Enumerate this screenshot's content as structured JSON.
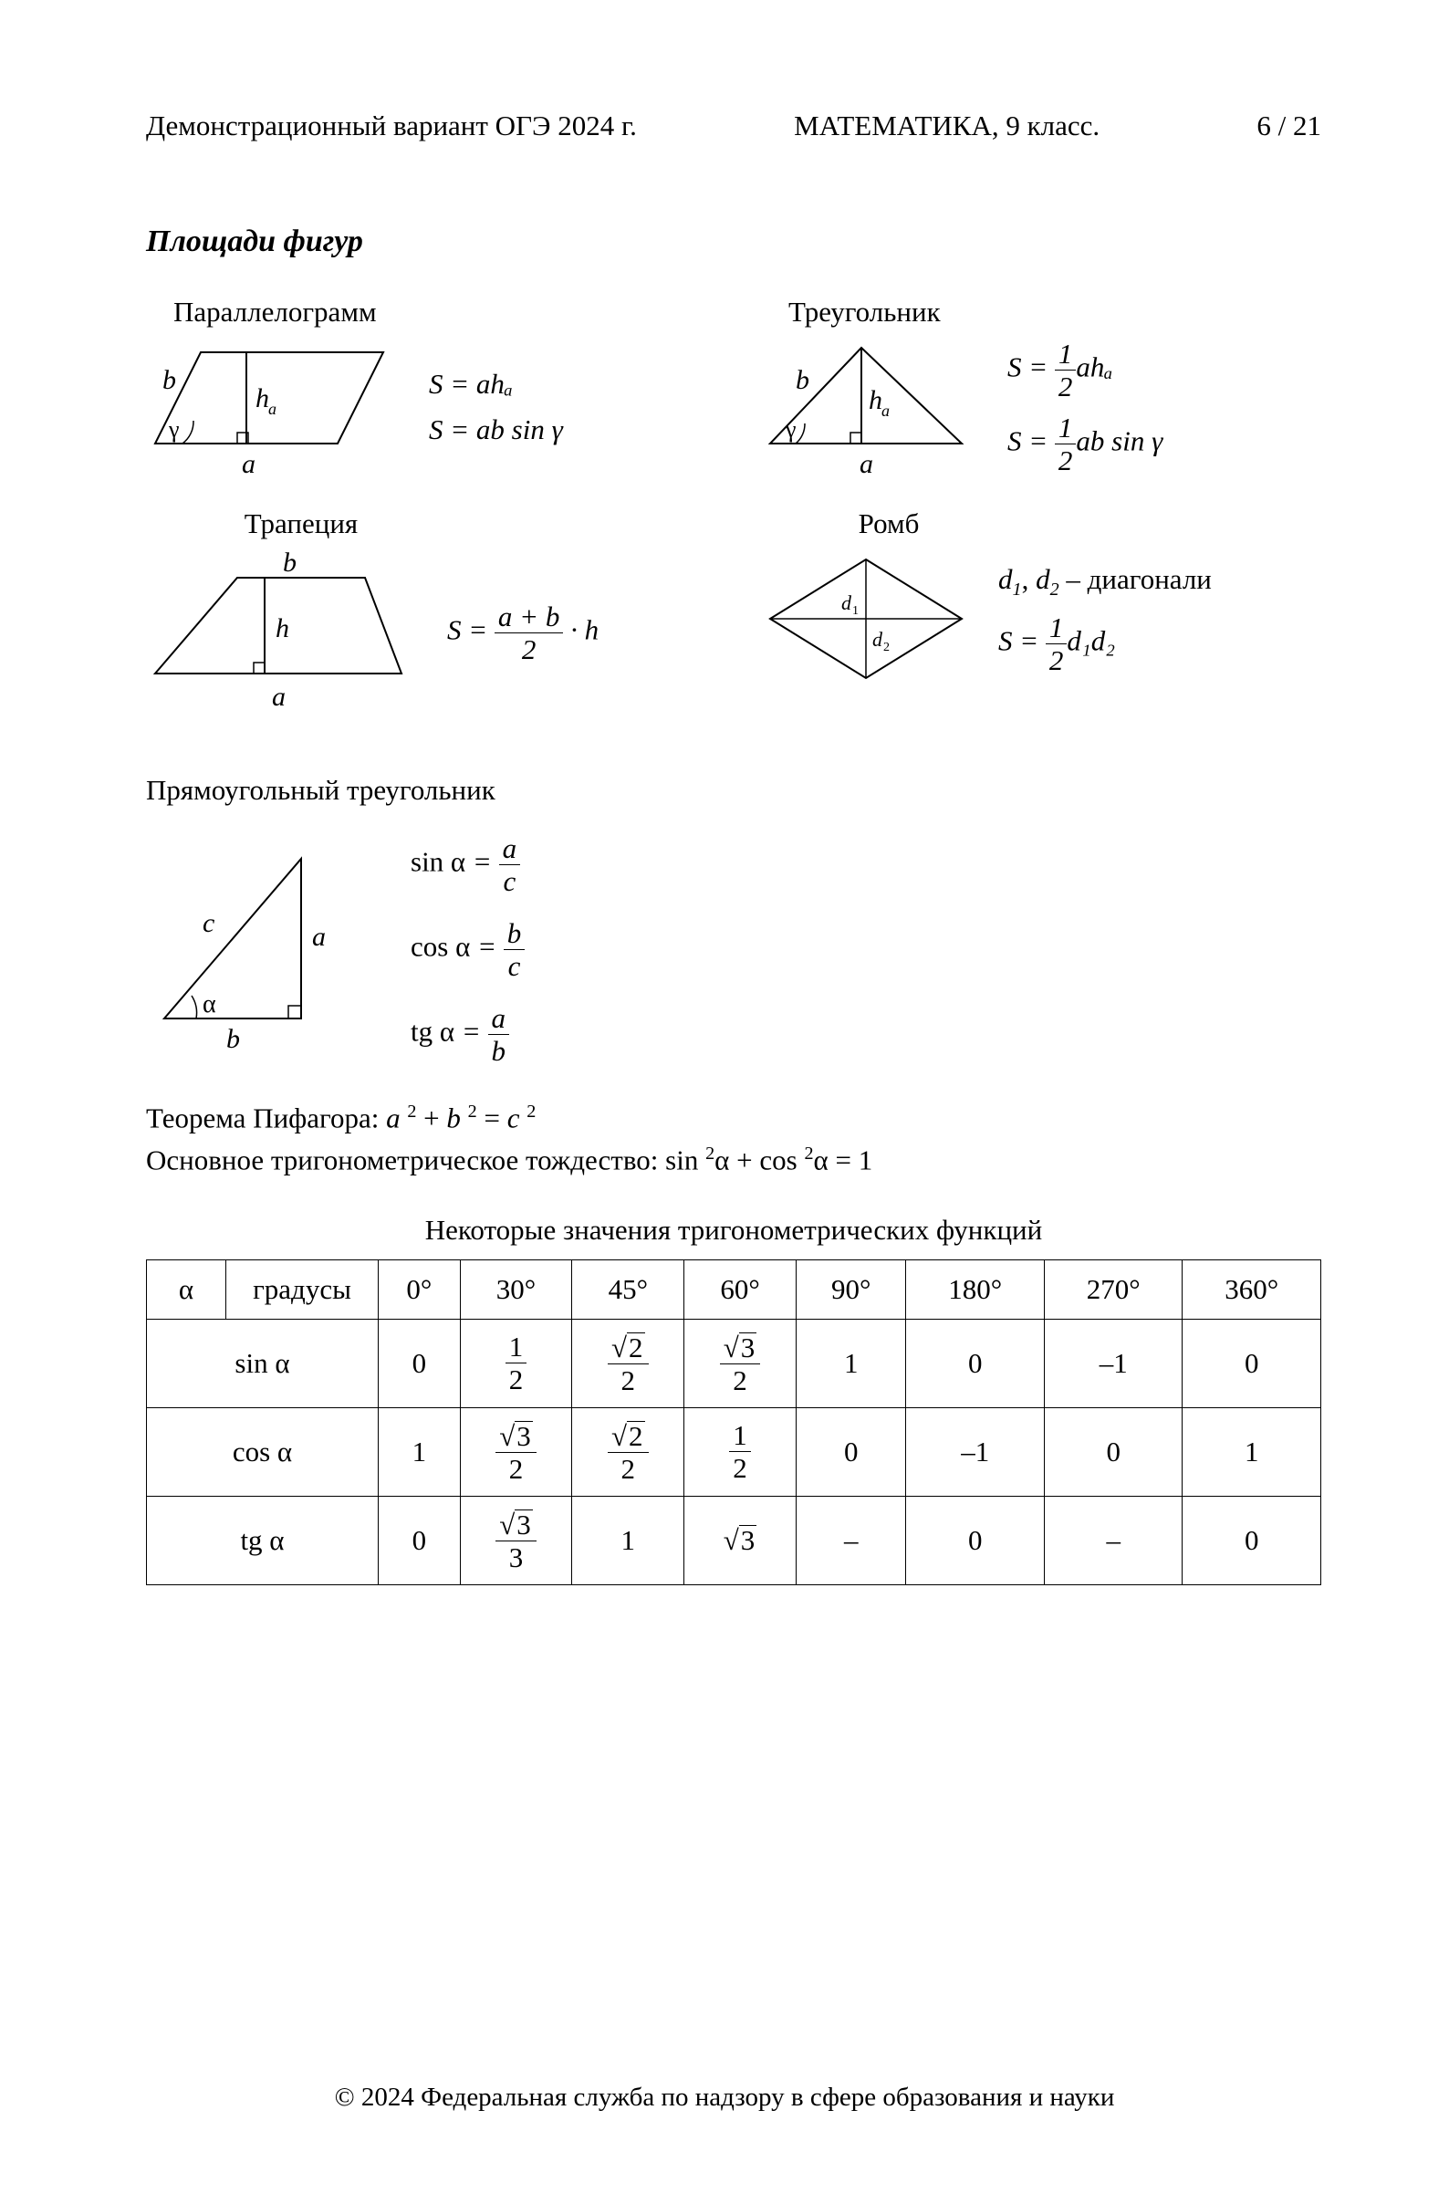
{
  "header": {
    "left": "Демонстрационный вариант ОГЭ 2024 г.",
    "center": "МАТЕМАТИКА, 9 класс.",
    "right": "6 / 21"
  },
  "section_title": "Площади фигур",
  "parallelogram": {
    "title": "Параллелограмм",
    "label_b": "b",
    "label_a": "a",
    "label_h": "hₐ",
    "label_gamma": "γ",
    "formula1_lhs": "S",
    "formula1_rhs": "ahₐ",
    "formula2_lhs": "S",
    "formula2_rhs": "ab sin γ"
  },
  "triangle": {
    "title": "Треугольник",
    "label_b": "b",
    "label_a": "a",
    "label_h": "hₐ",
    "label_gamma": "γ",
    "formula1": {
      "lhs": "S",
      "num": "1",
      "den": "2",
      "tail": "ahₐ"
    },
    "formula2": {
      "lhs": "S",
      "num": "1",
      "den": "2",
      "tail": "ab sin γ"
    }
  },
  "trapezoid": {
    "title": "Трапеция",
    "label_b_top": "b",
    "label_a_bot": "a",
    "label_h": "h",
    "formula": {
      "lhs": "S",
      "num": "a + b",
      "den": "2",
      "tail": "· h"
    }
  },
  "rhombus": {
    "title": "Ромб",
    "label_d1": "d₁",
    "label_d2": "d₂",
    "note": "d₁, d₂ – диагонали",
    "formula": {
      "lhs": "S",
      "num": "1",
      "den": "2",
      "tail": "d₁d₂"
    }
  },
  "right_triangle": {
    "title": "Прямоугольный треугольник",
    "label_a": "a",
    "label_b": "b",
    "label_c": "c",
    "label_alpha": "α",
    "sin": {
      "lhs": "sin α",
      "num": "a",
      "den": "c"
    },
    "cos": {
      "lhs": "cos α",
      "num": "b",
      "den": "c"
    },
    "tan": {
      "lhs": "tg α",
      "num": "a",
      "den": "b"
    }
  },
  "pythagoras": {
    "label": "Теорема Пифагора: ",
    "eq": "a ² + b ² = c ²"
  },
  "identity": {
    "label": "Основное тригонометрическое тождество: ",
    "eq": "sin ²α + cos ²α = 1"
  },
  "trig_table": {
    "caption": "Некоторые значения тригонометрических функций",
    "head_alpha": "α",
    "head_deg": "градусы",
    "degrees": [
      "0°",
      "30°",
      "45°",
      "60°",
      "90°",
      "180°",
      "270°",
      "360°"
    ],
    "rows": [
      {
        "label": "sin α",
        "cells": [
          {
            "plain": "0"
          },
          {
            "frac": {
              "num": "1",
              "den": "2"
            }
          },
          {
            "frac": {
              "num_sqrt": "2",
              "den": "2"
            }
          },
          {
            "frac": {
              "num_sqrt": "3",
              "den": "2"
            }
          },
          {
            "plain": "1"
          },
          {
            "plain": "0"
          },
          {
            "plain": "–1"
          },
          {
            "plain": "0"
          }
        ]
      },
      {
        "label": "cos α",
        "cells": [
          {
            "plain": "1"
          },
          {
            "frac": {
              "num_sqrt": "3",
              "den": "2"
            }
          },
          {
            "frac": {
              "num_sqrt": "2",
              "den": "2"
            }
          },
          {
            "frac": {
              "num": "1",
              "den": "2"
            }
          },
          {
            "plain": "0"
          },
          {
            "plain": "–1"
          },
          {
            "plain": "0"
          },
          {
            "plain": "1"
          }
        ]
      },
      {
        "label": "tg α",
        "cells": [
          {
            "plain": "0"
          },
          {
            "frac": {
              "num_sqrt": "3",
              "den": "3"
            }
          },
          {
            "plain": "1"
          },
          {
            "sqrt": "3"
          },
          {
            "plain": "–"
          },
          {
            "plain": "0"
          },
          {
            "plain": "–"
          },
          {
            "plain": "0"
          }
        ]
      }
    ]
  },
  "footer": "© 2024 Федеральная служба по надзору в сфере образования и науки",
  "colors": {
    "stroke": "#000000",
    "bg": "#ffffff"
  }
}
